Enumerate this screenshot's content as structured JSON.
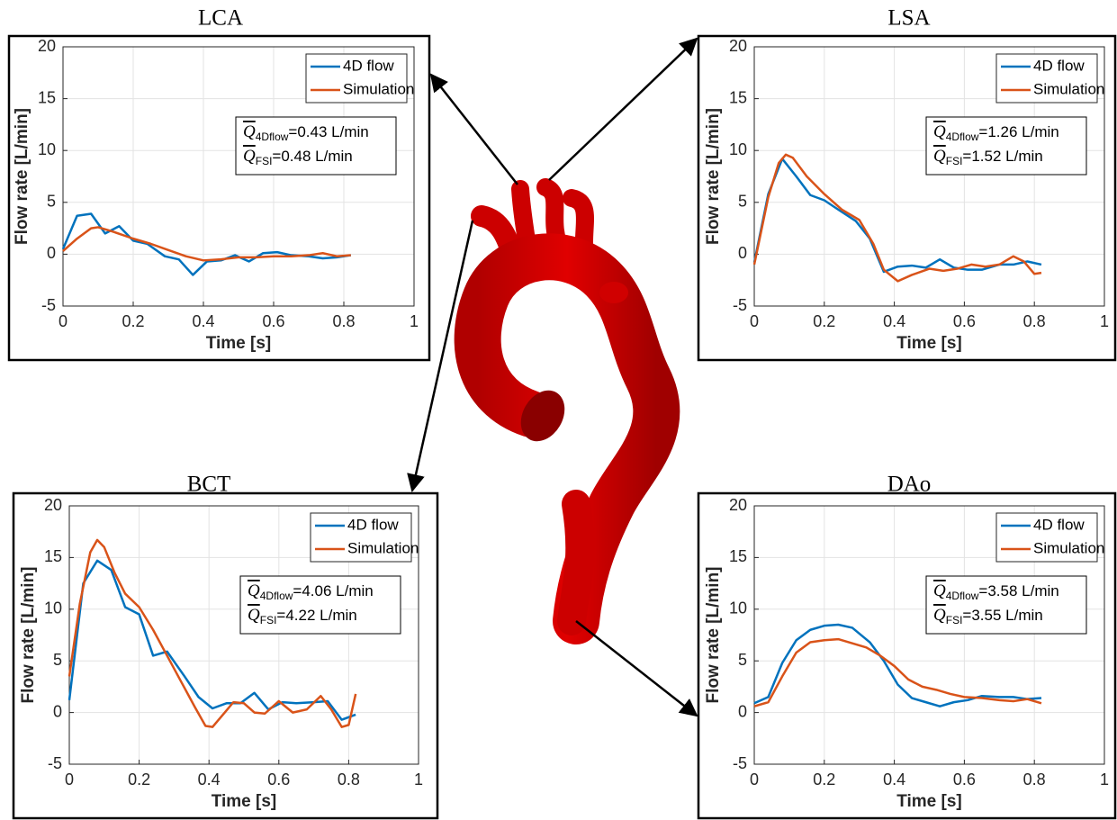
{
  "chart_data": [
    {
      "type": "line",
      "title": "LCA",
      "x_label": "Time [s]",
      "y_label": "Flow rate [L/min]",
      "xlim": [
        0,
        1
      ],
      "ylim": [
        -5,
        20
      ],
      "xticks": [
        0,
        0.2,
        0.4,
        0.6,
        0.8,
        1
      ],
      "yticks": [
        -5,
        0,
        5,
        10,
        15,
        20
      ],
      "grid": true,
      "legend": "upper right",
      "series": [
        {
          "name": "4D flow",
          "color": "#0072bd",
          "x": [
            0,
            0.04,
            0.08,
            0.12,
            0.16,
            0.2,
            0.24,
            0.29,
            0.33,
            0.37,
            0.41,
            0.45,
            0.49,
            0.53,
            0.57,
            0.61,
            0.65,
            0.7,
            0.74,
            0.78,
            0.82
          ],
          "values": [
            0.5,
            3.7,
            3.9,
            2.0,
            2.7,
            1.3,
            1.0,
            -0.2,
            -0.5,
            -2.0,
            -0.7,
            -0.6,
            -0.1,
            -0.7,
            0.1,
            0.2,
            -0.1,
            -0.2,
            -0.4,
            -0.3,
            -0.1
          ]
        },
        {
          "name": "Simulation",
          "color": "#d95319",
          "x": [
            0,
            0.04,
            0.08,
            0.1,
            0.14,
            0.2,
            0.25,
            0.3,
            0.35,
            0.4,
            0.45,
            0.5,
            0.55,
            0.6,
            0.65,
            0.7,
            0.74,
            0.78,
            0.82
          ],
          "values": [
            0.3,
            1.5,
            2.5,
            2.6,
            2.2,
            1.5,
            1.0,
            0.4,
            -0.2,
            -0.6,
            -0.5,
            -0.3,
            -0.3,
            -0.2,
            -0.2,
            -0.1,
            0.1,
            -0.2,
            -0.1
          ]
        }
      ],
      "annotations": [
        {
          "symbol": "Q",
          "subscript": "4Dflow",
          "text": "=0.43 L/min"
        },
        {
          "symbol": "Q",
          "subscript": "FSI",
          "text": "=0.48 L/min"
        }
      ]
    },
    {
      "type": "line",
      "title": "LSA",
      "x_label": "Time [s]",
      "y_label": "Flow rate [L/min]",
      "xlim": [
        0,
        1
      ],
      "ylim": [
        -5,
        20
      ],
      "xticks": [
        0,
        0.2,
        0.4,
        0.6,
        0.8,
        1
      ],
      "yticks": [
        -5,
        0,
        5,
        10,
        15,
        20
      ],
      "grid": true,
      "legend": "upper right",
      "series": [
        {
          "name": "4D flow",
          "color": "#0072bd",
          "x": [
            0,
            0.04,
            0.08,
            0.12,
            0.16,
            0.2,
            0.24,
            0.29,
            0.33,
            0.37,
            0.41,
            0.45,
            0.49,
            0.53,
            0.57,
            0.61,
            0.65,
            0.7,
            0.74,
            0.78,
            0.82
          ],
          "values": [
            -0.8,
            5.8,
            9.2,
            7.5,
            5.7,
            5.2,
            4.3,
            3.2,
            1.5,
            -1.7,
            -1.2,
            -1.1,
            -1.3,
            -0.5,
            -1.3,
            -1.5,
            -1.5,
            -1.0,
            -1.0,
            -0.7,
            -1.0
          ]
        },
        {
          "name": "Simulation",
          "color": "#d95319",
          "x": [
            0,
            0.04,
            0.07,
            0.09,
            0.11,
            0.15,
            0.2,
            0.25,
            0.3,
            0.34,
            0.37,
            0.41,
            0.45,
            0.5,
            0.54,
            0.58,
            0.62,
            0.66,
            0.7,
            0.74,
            0.77,
            0.8,
            0.82
          ],
          "values": [
            -1.0,
            5.5,
            8.8,
            9.6,
            9.3,
            7.5,
            5.8,
            4.3,
            3.3,
            1.0,
            -1.5,
            -2.6,
            -2.0,
            -1.4,
            -1.6,
            -1.4,
            -1.0,
            -1.2,
            -1.0,
            -0.2,
            -0.7,
            -1.9,
            -1.8
          ]
        }
      ],
      "annotations": [
        {
          "symbol": "Q",
          "subscript": "4Dflow",
          "text": "=1.26 L/min"
        },
        {
          "symbol": "Q",
          "subscript": "FSI",
          "text": "=1.52 L/min"
        }
      ]
    },
    {
      "type": "line",
      "title": "BCT",
      "x_label": "Time [s]",
      "y_label": "Flow rate [L/min]",
      "xlim": [
        0,
        1
      ],
      "ylim": [
        -5,
        20
      ],
      "xticks": [
        0,
        0.2,
        0.4,
        0.6,
        0.8,
        1
      ],
      "yticks": [
        -5,
        0,
        5,
        10,
        15,
        20
      ],
      "grid": true,
      "legend": "upper right",
      "series": [
        {
          "name": "4D flow",
          "color": "#0072bd",
          "x": [
            0,
            0.04,
            0.08,
            0.12,
            0.16,
            0.2,
            0.24,
            0.28,
            0.33,
            0.37,
            0.41,
            0.45,
            0.49,
            0.53,
            0.57,
            0.61,
            0.65,
            0.7,
            0.74,
            0.78,
            0.82
          ],
          "values": [
            1.2,
            12.5,
            14.7,
            13.8,
            10.2,
            9.5,
            5.5,
            5.9,
            3.5,
            1.5,
            0.4,
            0.9,
            0.9,
            1.9,
            0.3,
            1.0,
            0.9,
            1.0,
            1.1,
            -0.7,
            -0.2
          ]
        },
        {
          "name": "Simulation",
          "color": "#d95319",
          "x": [
            0,
            0.03,
            0.06,
            0.08,
            0.1,
            0.13,
            0.16,
            0.2,
            0.24,
            0.28,
            0.32,
            0.36,
            0.39,
            0.41,
            0.44,
            0.47,
            0.5,
            0.53,
            0.56,
            0.6,
            0.64,
            0.68,
            0.72,
            0.75,
            0.78,
            0.8,
            0.82
          ],
          "values": [
            3.5,
            10.5,
            15.5,
            16.7,
            16.0,
            13.5,
            11.5,
            10.2,
            8.0,
            5.5,
            3.0,
            0.5,
            -1.3,
            -1.4,
            -0.2,
            1.0,
            0.9,
            0.0,
            -0.1,
            1.1,
            0.0,
            0.3,
            1.6,
            0.3,
            -1.4,
            -1.2,
            1.8
          ]
        }
      ],
      "annotations": [
        {
          "symbol": "Q",
          "subscript": "4Dflow",
          "text": "=4.06 L/min"
        },
        {
          "symbol": "Q",
          "subscript": "FSI",
          "text": "=4.22 L/min"
        }
      ]
    },
    {
      "type": "line",
      "title": "DAo",
      "x_label": "Time [s]",
      "y_label": "Flow rate [L/min]",
      "xlim": [
        0,
        1
      ],
      "ylim": [
        -5,
        20
      ],
      "xticks": [
        0,
        0.2,
        0.4,
        0.6,
        0.8,
        1
      ],
      "yticks": [
        -5,
        0,
        5,
        10,
        15,
        20
      ],
      "grid": true,
      "legend": "upper right",
      "series": [
        {
          "name": "4D flow",
          "color": "#0072bd",
          "x": [
            0,
            0.04,
            0.08,
            0.12,
            0.16,
            0.2,
            0.24,
            0.28,
            0.33,
            0.37,
            0.41,
            0.45,
            0.49,
            0.53,
            0.57,
            0.61,
            0.65,
            0.7,
            0.74,
            0.78,
            0.82
          ],
          "values": [
            0.9,
            1.5,
            4.8,
            7.0,
            8.0,
            8.4,
            8.5,
            8.2,
            6.8,
            5.0,
            2.7,
            1.4,
            1.0,
            0.6,
            1.0,
            1.2,
            1.6,
            1.5,
            1.5,
            1.3,
            1.4
          ]
        },
        {
          "name": "Simulation",
          "color": "#d95319",
          "x": [
            0,
            0.04,
            0.08,
            0.12,
            0.16,
            0.2,
            0.24,
            0.28,
            0.32,
            0.36,
            0.4,
            0.44,
            0.48,
            0.52,
            0.56,
            0.6,
            0.65,
            0.7,
            0.74,
            0.78,
            0.82
          ],
          "values": [
            0.6,
            1.0,
            3.5,
            5.8,
            6.8,
            7.0,
            7.1,
            6.7,
            6.3,
            5.5,
            4.5,
            3.2,
            2.5,
            2.2,
            1.8,
            1.5,
            1.4,
            1.2,
            1.1,
            1.3,
            0.9
          ]
        }
      ],
      "annotations": [
        {
          "symbol": "Q",
          "subscript": "4Dflow",
          "text": "=3.58 L/min"
        },
        {
          "symbol": "Q",
          "subscript": "FSI",
          "text": "=3.55 L/min"
        }
      ]
    }
  ]
}
